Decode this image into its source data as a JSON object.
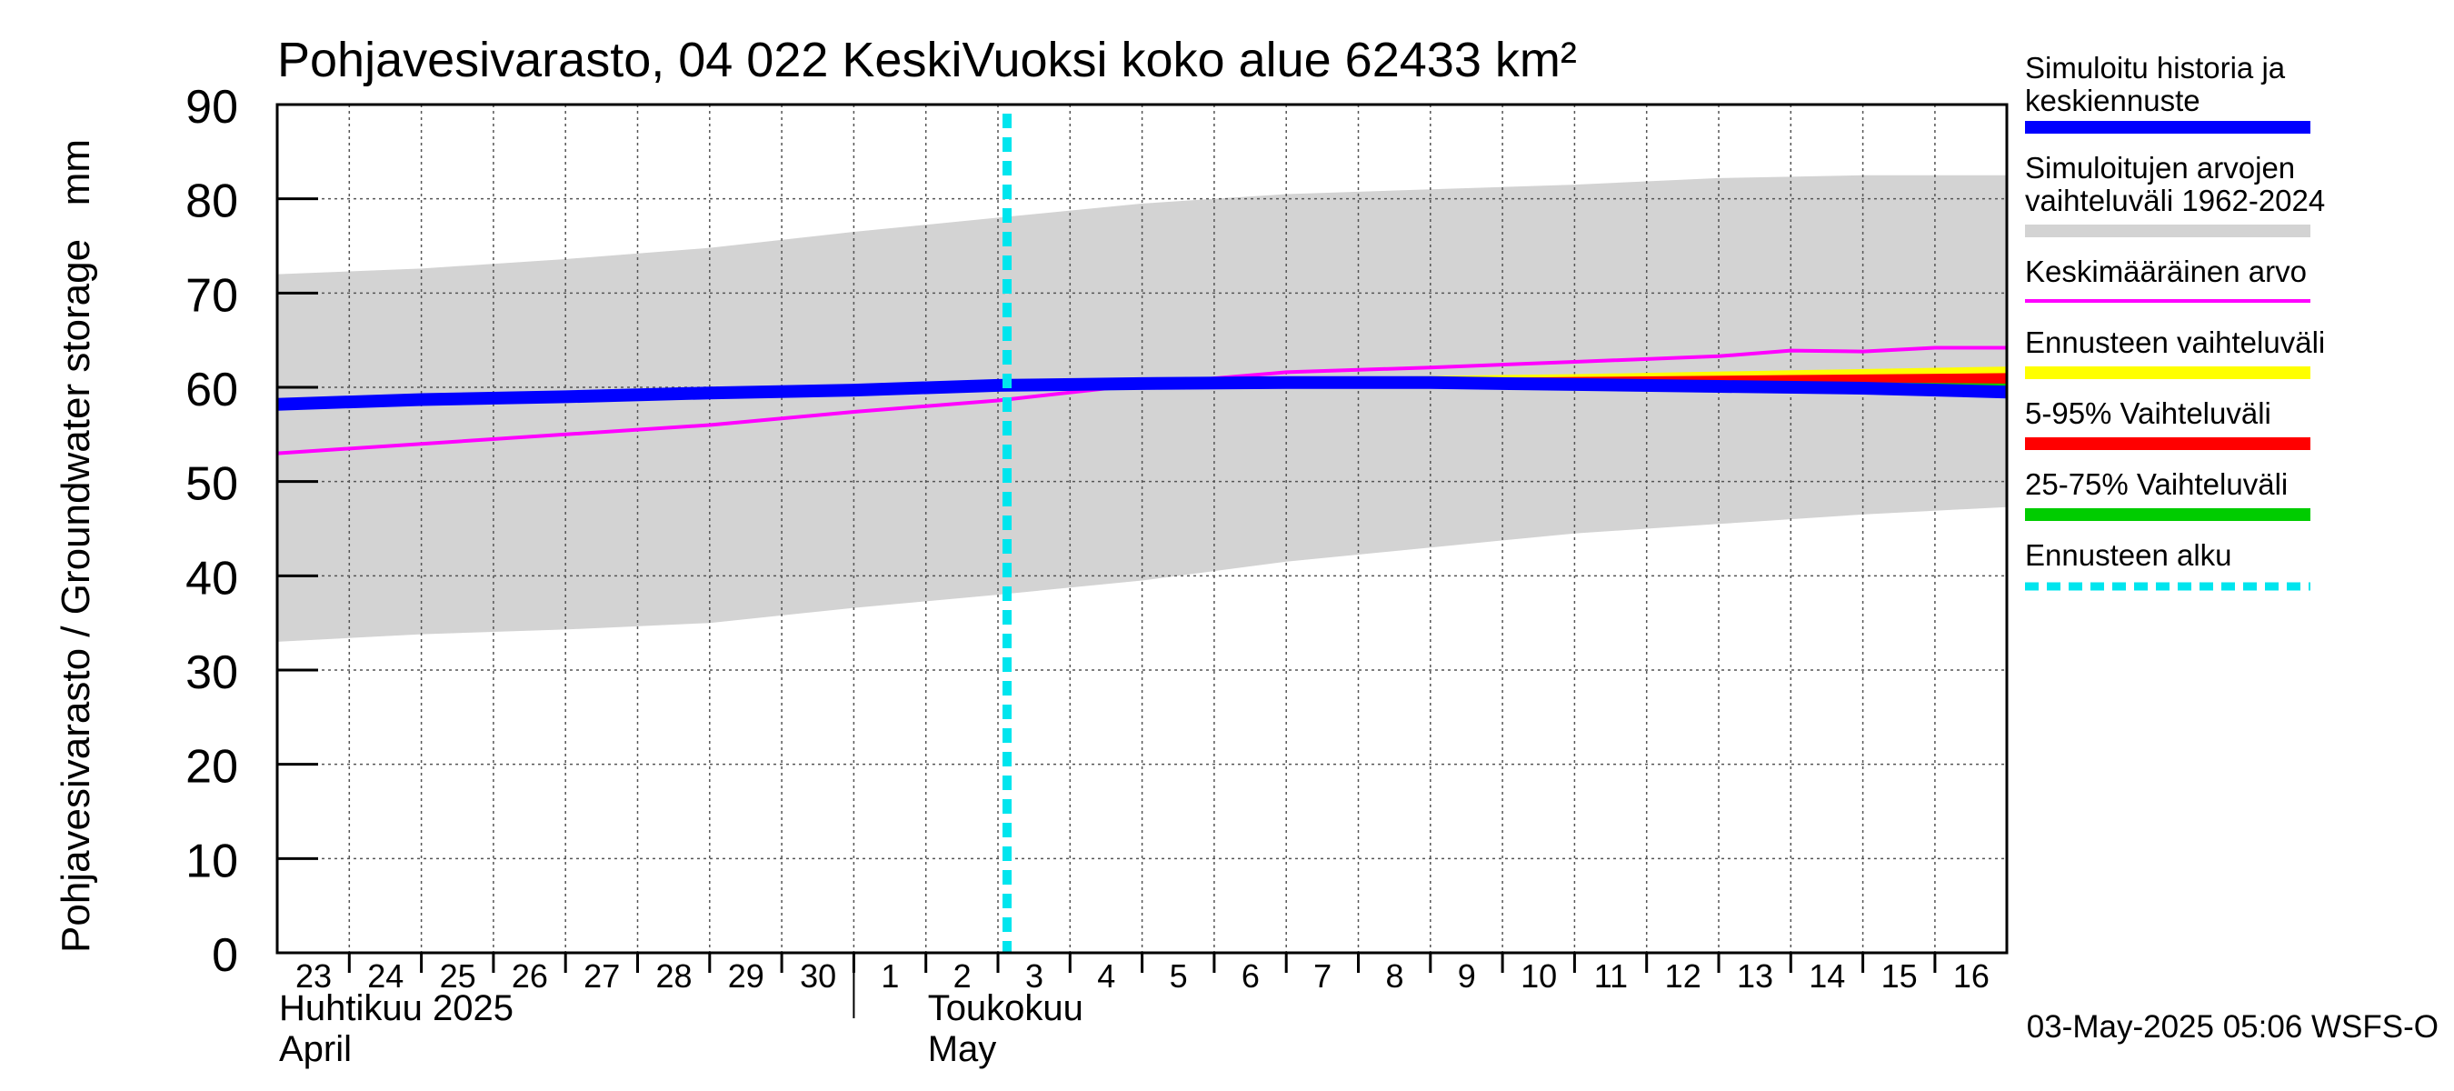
{
  "chart_data": {
    "type": "line",
    "title": "Pohjavesivarasto, 04 022 KeskiVuoksi koko alue 62433 km²",
    "ylabel": "Pohjavesivarasto / Groundwater storage   mm",
    "ylim": [
      0,
      90
    ],
    "yticks": [
      0,
      10,
      20,
      30,
      40,
      50,
      60,
      70,
      80,
      90
    ],
    "xlim": [
      "2025-04-23",
      "2025-05-16"
    ],
    "xtick_labels": [
      "23",
      "24",
      "25",
      "26",
      "27",
      "28",
      "29",
      "30",
      "1",
      "2",
      "3",
      "4",
      "5",
      "6",
      "7",
      "8",
      "9",
      "10",
      "11",
      "12",
      "13",
      "14",
      "15",
      "16"
    ],
    "month_labels": [
      {
        "fi": "Huhtikuu  2025",
        "en": "April",
        "at": "2025-04-23"
      },
      {
        "fi": "Toukokuu",
        "en": "May",
        "at": "2025-05-02"
      }
    ],
    "forecast_start": "2025-05-03",
    "grid": true,
    "legend_position": "right",
    "footer": "03-May-2025 05:06 WSFS-O",
    "series": [
      {
        "name": "Simuloitujen arvojen vaihteluväli 1962-2024",
        "kind": "band",
        "color": "#d3d3d3",
        "x": [
          "2025-04-23",
          "2025-04-25",
          "2025-04-27",
          "2025-04-29",
          "2025-05-01",
          "2025-05-03",
          "2025-05-05",
          "2025-05-07",
          "2025-05-09",
          "2025-05-11",
          "2025-05-13",
          "2025-05-15",
          "2025-05-17"
        ],
        "upper": [
          72,
          72.6,
          73.6,
          74.8,
          76.5,
          78,
          79.5,
          80.5,
          81,
          81.5,
          82.2,
          82.5,
          82.5
        ],
        "lower": [
          33,
          33.8,
          34.3,
          35.0,
          36.6,
          38,
          39.5,
          41.5,
          43,
          44.5,
          45.5,
          46.5,
          47.3
        ]
      },
      {
        "name": "Keskimääräinen arvo",
        "kind": "line",
        "color": "#ff00ff",
        "x": [
          "2025-04-23",
          "2025-04-25",
          "2025-04-27",
          "2025-04-29",
          "2025-05-01",
          "2025-05-03",
          "2025-05-05",
          "2025-05-07",
          "2025-05-09",
          "2025-05-11",
          "2025-05-13",
          "2025-05-14",
          "2025-05-15",
          "2025-05-16",
          "2025-05-17"
        ],
        "values": [
          53,
          54,
          55,
          56,
          57.4,
          58.6,
          60.3,
          61.6,
          62.1,
          62.7,
          63.3,
          63.9,
          63.8,
          64.2,
          64.2
        ]
      },
      {
        "name": "Ennusteen vaihteluväli",
        "kind": "band",
        "color": "#ffff00",
        "x": [
          "2025-05-03",
          "2025-05-07",
          "2025-05-11",
          "2025-05-14",
          "2025-05-17"
        ],
        "upper": [
          60.3,
          61,
          61.4,
          61.8,
          62.2
        ],
        "lower": [
          60.1,
          60,
          59.8,
          59.6,
          59.3
        ]
      },
      {
        "name": "5-95% Vaihteluväli",
        "kind": "band",
        "color": "#ff0000",
        "x": [
          "2025-05-03",
          "2025-05-07",
          "2025-05-11",
          "2025-05-14",
          "2025-05-17"
        ],
        "upper": [
          60.25,
          60.8,
          61.1,
          61.3,
          61.5
        ],
        "lower": [
          60.15,
          60.1,
          59.9,
          59.8,
          59.6
        ]
      },
      {
        "name": "25-75% Vaihteluväli",
        "kind": "band",
        "color": "#00cc00",
        "x": [
          "2025-05-03",
          "2025-05-07",
          "2025-05-11",
          "2025-05-14",
          "2025-05-17"
        ],
        "upper": [
          60.22,
          60.5,
          60.6,
          60.6,
          60.4
        ],
        "lower": [
          60.18,
          60.3,
          60.3,
          60.1,
          59.9
        ]
      },
      {
        "name": "Simuloitu historia ja keskiennuste",
        "kind": "line",
        "color": "#0000ff",
        "x": [
          "2025-04-23",
          "2025-04-25",
          "2025-04-27",
          "2025-04-29",
          "2025-05-01",
          "2025-05-03",
          "2025-05-05",
          "2025-05-07",
          "2025-05-09",
          "2025-05-11",
          "2025-05-13",
          "2025-05-15",
          "2025-05-17"
        ],
        "values": [
          58.2,
          58.7,
          59.0,
          59.4,
          59.7,
          60.2,
          60.4,
          60.5,
          60.5,
          60.3,
          60.1,
          59.9,
          59.5
        ]
      }
    ],
    "legend": [
      {
        "label": "Simuloitu historia ja keskiennuste",
        "color": "#0000ff",
        "style": "solid"
      },
      {
        "label": "Simuloitujen arvojen vaihteluväli 1962-2024",
        "color": "#d3d3d3",
        "style": "solid"
      },
      {
        "label": "Keskimääräinen arvo",
        "color": "#ff00ff",
        "style": "thin"
      },
      {
        "label": "Ennusteen vaihteluväli",
        "color": "#ffff00",
        "style": "solid"
      },
      {
        "label": "5-95% Vaihteluväli",
        "color": "#ff0000",
        "style": "solid"
      },
      {
        "label": "25-75% Vaihteluväli",
        "color": "#00cc00",
        "style": "solid"
      },
      {
        "label": "Ennusteen alku",
        "color": "#00e5ee",
        "style": "dashed"
      }
    ]
  }
}
